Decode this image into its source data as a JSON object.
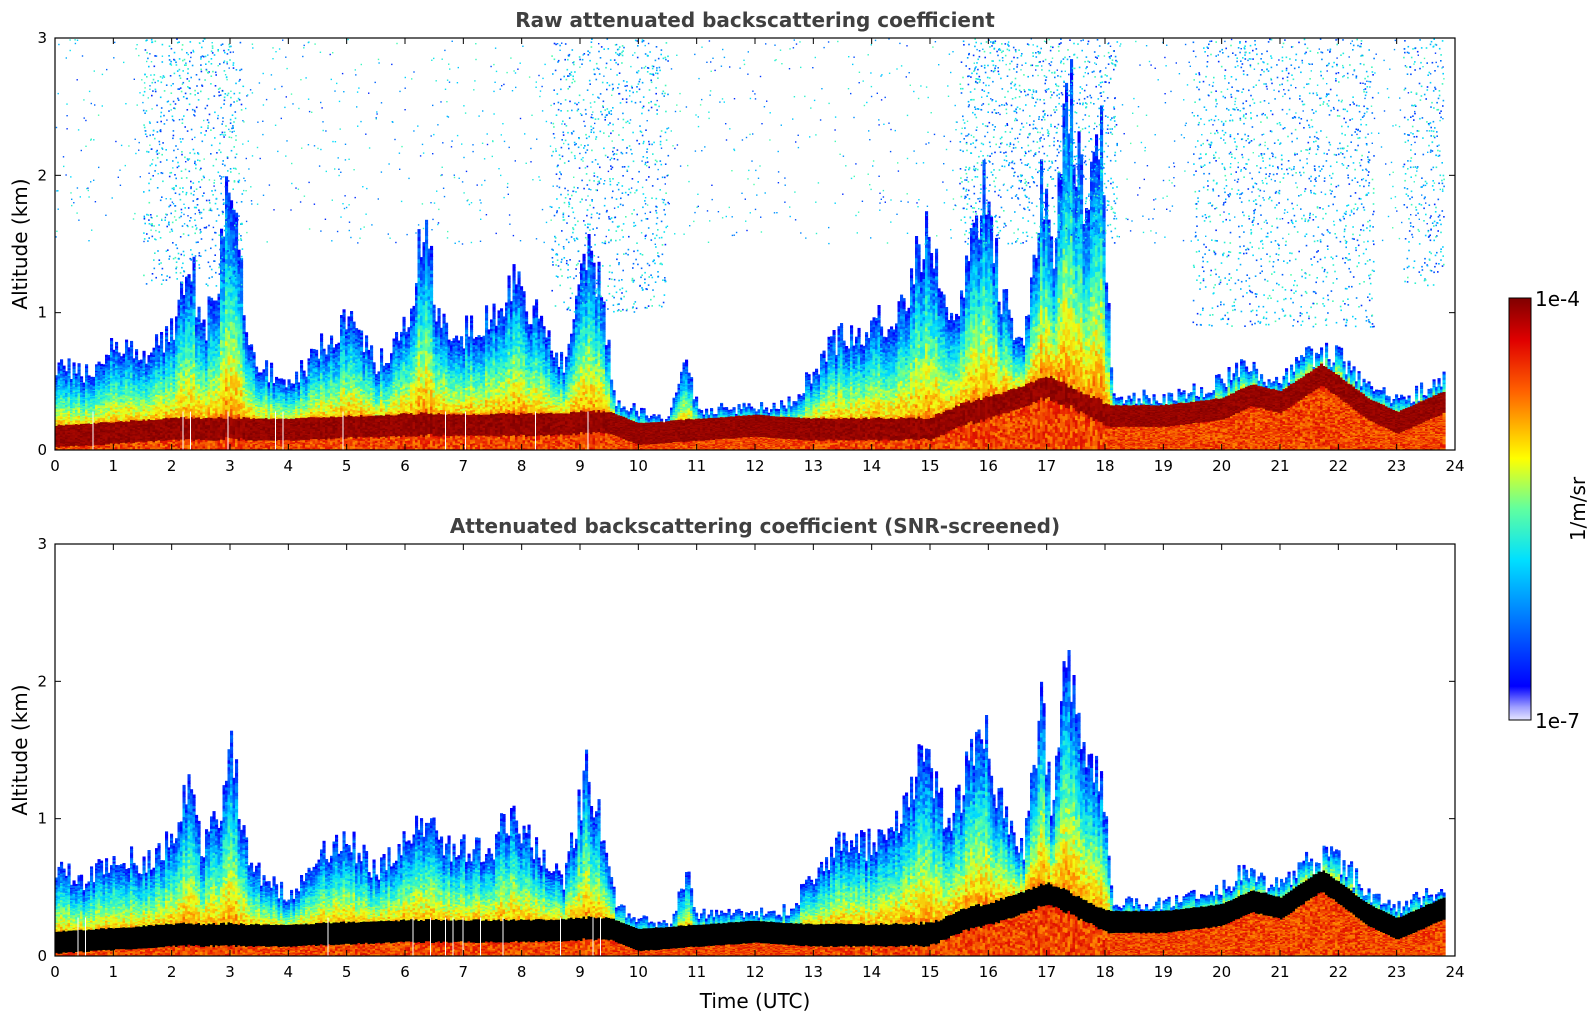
{
  "chart_data": [
    {
      "type": "heatmap",
      "title": "Raw attenuated backscattering coefficient",
      "xlabel": "",
      "ylabel": "Altitude (km)",
      "xlim": [
        0,
        24
      ],
      "ylim": [
        0,
        3
      ],
      "x_ticks": [
        "0",
        "1",
        "2",
        "3",
        "4",
        "5",
        "6",
        "7",
        "8",
        "9",
        "10",
        "11",
        "12",
        "13",
        "14",
        "15",
        "16",
        "17",
        "18",
        "19",
        "20",
        "21",
        "22",
        "23",
        "24"
      ],
      "y_ticks": [
        "0",
        "1",
        "2",
        "3"
      ],
      "data_end_time": 23.8,
      "cloud_top_km": [
        [
          0,
          0.62
        ],
        [
          0.5,
          0.55
        ],
        [
          1,
          0.75
        ],
        [
          1.5,
          0.68
        ],
        [
          2,
          0.9
        ],
        [
          2.3,
          1.45
        ],
        [
          2.5,
          0.8
        ],
        [
          2.8,
          1.3
        ],
        [
          3,
          2.1
        ],
        [
          3.3,
          0.7
        ],
        [
          3.7,
          0.55
        ],
        [
          4,
          0.45
        ],
        [
          4.5,
          0.75
        ],
        [
          5,
          0.95
        ],
        [
          5.5,
          0.6
        ],
        [
          6,
          0.95
        ],
        [
          6.3,
          1.6
        ],
        [
          6.6,
          0.9
        ],
        [
          7,
          0.85
        ],
        [
          7.5,
          1.0
        ],
        [
          7.8,
          1.2
        ],
        [
          8.3,
          0.95
        ],
        [
          8.7,
          0.6
        ],
        [
          9.1,
          1.4
        ],
        [
          9.3,
          1.2
        ],
        [
          9.6,
          0.35
        ],
        [
          10,
          0.28
        ],
        [
          10.5,
          0.22
        ],
        [
          10.8,
          0.65
        ],
        [
          11,
          0.3
        ],
        [
          12,
          0.3
        ],
        [
          12.6,
          0.35
        ],
        [
          13,
          0.6
        ],
        [
          13.5,
          0.85
        ],
        [
          14,
          0.9
        ],
        [
          14.5,
          1.0
        ],
        [
          14.9,
          1.6
        ],
        [
          15.3,
          0.9
        ],
        [
          15.6,
          1.3
        ],
        [
          15.9,
          2.0
        ],
        [
          16.2,
          1.1
        ],
        [
          16.6,
          0.8
        ],
        [
          16.9,
          2.0
        ],
        [
          17.1,
          1.2
        ],
        [
          17.3,
          2.9
        ],
        [
          17.6,
          1.8
        ],
        [
          17.9,
          2.4
        ],
        [
          18.1,
          0.4
        ],
        [
          19,
          0.38
        ],
        [
          19.8,
          0.45
        ],
        [
          20.3,
          0.6
        ],
        [
          21,
          0.5
        ],
        [
          21.5,
          0.7
        ],
        [
          22,
          0.7
        ],
        [
          22.5,
          0.45
        ],
        [
          23,
          0.35
        ],
        [
          23.5,
          0.45
        ],
        [
          23.8,
          0.55
        ]
      ],
      "boundary_layer_km": [
        [
          0,
          0.1
        ],
        [
          2,
          0.15
        ],
        [
          4,
          0.15
        ],
        [
          6,
          0.18
        ],
        [
          8,
          0.18
        ],
        [
          9.5,
          0.2
        ],
        [
          10,
          0.12
        ],
        [
          11,
          0.15
        ],
        [
          12,
          0.18
        ],
        [
          13,
          0.15
        ],
        [
          14,
          0.15
        ],
        [
          15,
          0.15
        ],
        [
          15.5,
          0.25
        ],
        [
          16,
          0.3
        ],
        [
          17,
          0.45
        ],
        [
          18,
          0.25
        ],
        [
          19,
          0.25
        ],
        [
          20,
          0.3
        ],
        [
          20.5,
          0.4
        ],
        [
          21,
          0.35
        ],
        [
          21.7,
          0.55
        ],
        [
          22.5,
          0.3
        ],
        [
          23,
          0.2
        ],
        [
          23.8,
          0.35
        ]
      ],
      "high_noise_regions": [
        {
          "x_start": 1.5,
          "x_end": 3.2,
          "y_min_km": 1.2,
          "y_max_km": 3.0
        },
        {
          "x_start": 8.5,
          "x_end": 10.5,
          "y_min_km": 1.0,
          "y_max_km": 3.0
        },
        {
          "x_start": 15.5,
          "x_end": 18.2,
          "y_min_km": 1.5,
          "y_max_km": 3.0
        },
        {
          "x_start": 19.5,
          "x_end": 22.6,
          "y_min_km": 0.9,
          "y_max_km": 3.0
        },
        {
          "x_start": 23.1,
          "x_end": 23.8,
          "y_min_km": 1.2,
          "y_max_km": 3.0
        }
      ]
    },
    {
      "type": "heatmap",
      "title": "Attenuated backscattering coefficient (SNR-screened)",
      "xlabel": "Time (UTC)",
      "ylabel": "Altitude (km)",
      "xlim": [
        0,
        24
      ],
      "ylim": [
        0,
        3
      ],
      "x_ticks": [
        "0",
        "1",
        "2",
        "3",
        "4",
        "5",
        "6",
        "7",
        "8",
        "9",
        "10",
        "11",
        "12",
        "13",
        "14",
        "15",
        "16",
        "17",
        "18",
        "19",
        "20",
        "21",
        "22",
        "23",
        "24"
      ],
      "y_ticks": [
        "0",
        "1",
        "2",
        "3"
      ],
      "data_end_time": 23.8,
      "cloud_top_km": [
        [
          0,
          0.62
        ],
        [
          0.5,
          0.55
        ],
        [
          1,
          0.72
        ],
        [
          1.5,
          0.68
        ],
        [
          2,
          0.85
        ],
        [
          2.3,
          1.4
        ],
        [
          2.5,
          0.8
        ],
        [
          2.8,
          1.1
        ],
        [
          3,
          1.5
        ],
        [
          3.3,
          0.65
        ],
        [
          3.7,
          0.55
        ],
        [
          4,
          0.4
        ],
        [
          4.5,
          0.75
        ],
        [
          5,
          0.85
        ],
        [
          5.5,
          0.6
        ],
        [
          6,
          0.85
        ],
        [
          6.2,
          1.05
        ],
        [
          6.6,
          0.8
        ],
        [
          7,
          0.8
        ],
        [
          7.5,
          0.8
        ],
        [
          7.8,
          1.05
        ],
        [
          8.3,
          0.75
        ],
        [
          8.7,
          0.55
        ],
        [
          9.1,
          1.35
        ],
        [
          9.3,
          1.0
        ],
        [
          9.6,
          0.35
        ],
        [
          10,
          0.28
        ],
        [
          10.5,
          0.22
        ],
        [
          10.8,
          0.6
        ],
        [
          11,
          0.3
        ],
        [
          12,
          0.3
        ],
        [
          12.6,
          0.35
        ],
        [
          13,
          0.6
        ],
        [
          13.5,
          0.85
        ],
        [
          14,
          0.8
        ],
        [
          14.5,
          1.0
        ],
        [
          14.9,
          1.5
        ],
        [
          15.3,
          0.9
        ],
        [
          15.6,
          1.3
        ],
        [
          15.9,
          1.6
        ],
        [
          16.2,
          1.1
        ],
        [
          16.6,
          0.8
        ],
        [
          16.9,
          1.85
        ],
        [
          17.1,
          1.0
        ],
        [
          17.3,
          2.35
        ],
        [
          17.6,
          1.4
        ],
        [
          17.9,
          1.4
        ],
        [
          18.1,
          0.38
        ],
        [
          19,
          0.38
        ],
        [
          19.8,
          0.45
        ],
        [
          20.3,
          0.6
        ],
        [
          21,
          0.5
        ],
        [
          21.5,
          0.7
        ],
        [
          22,
          0.7
        ],
        [
          22.5,
          0.45
        ],
        [
          23,
          0.35
        ],
        [
          23.5,
          0.45
        ],
        [
          23.8,
          0.5
        ]
      ],
      "boundary_layer_km": [
        [
          0,
          0.1
        ],
        [
          2,
          0.15
        ],
        [
          4,
          0.15
        ],
        [
          6,
          0.18
        ],
        [
          8,
          0.18
        ],
        [
          9.5,
          0.2
        ],
        [
          10,
          0.12
        ],
        [
          11,
          0.15
        ],
        [
          12,
          0.18
        ],
        [
          13,
          0.15
        ],
        [
          14,
          0.15
        ],
        [
          15,
          0.15
        ],
        [
          15.5,
          0.25
        ],
        [
          16,
          0.3
        ],
        [
          17,
          0.45
        ],
        [
          18,
          0.25
        ],
        [
          19,
          0.25
        ],
        [
          20,
          0.3
        ],
        [
          20.5,
          0.4
        ],
        [
          21,
          0.35
        ],
        [
          21.7,
          0.55
        ],
        [
          22.5,
          0.3
        ],
        [
          23,
          0.2
        ],
        [
          23.8,
          0.35
        ]
      ],
      "saturated_color": "#000000",
      "high_noise_regions": []
    }
  ],
  "colorbar": {
    "label": "1/m/sr",
    "min_label": "1e-7",
    "max_label": "1e-4",
    "colormap": "jet",
    "scale": "log",
    "colors": [
      "#e6e6ff",
      "#0000ff",
      "#00c0ff",
      "#40ffc0",
      "#ffff00",
      "#ff6000",
      "#800000"
    ]
  }
}
